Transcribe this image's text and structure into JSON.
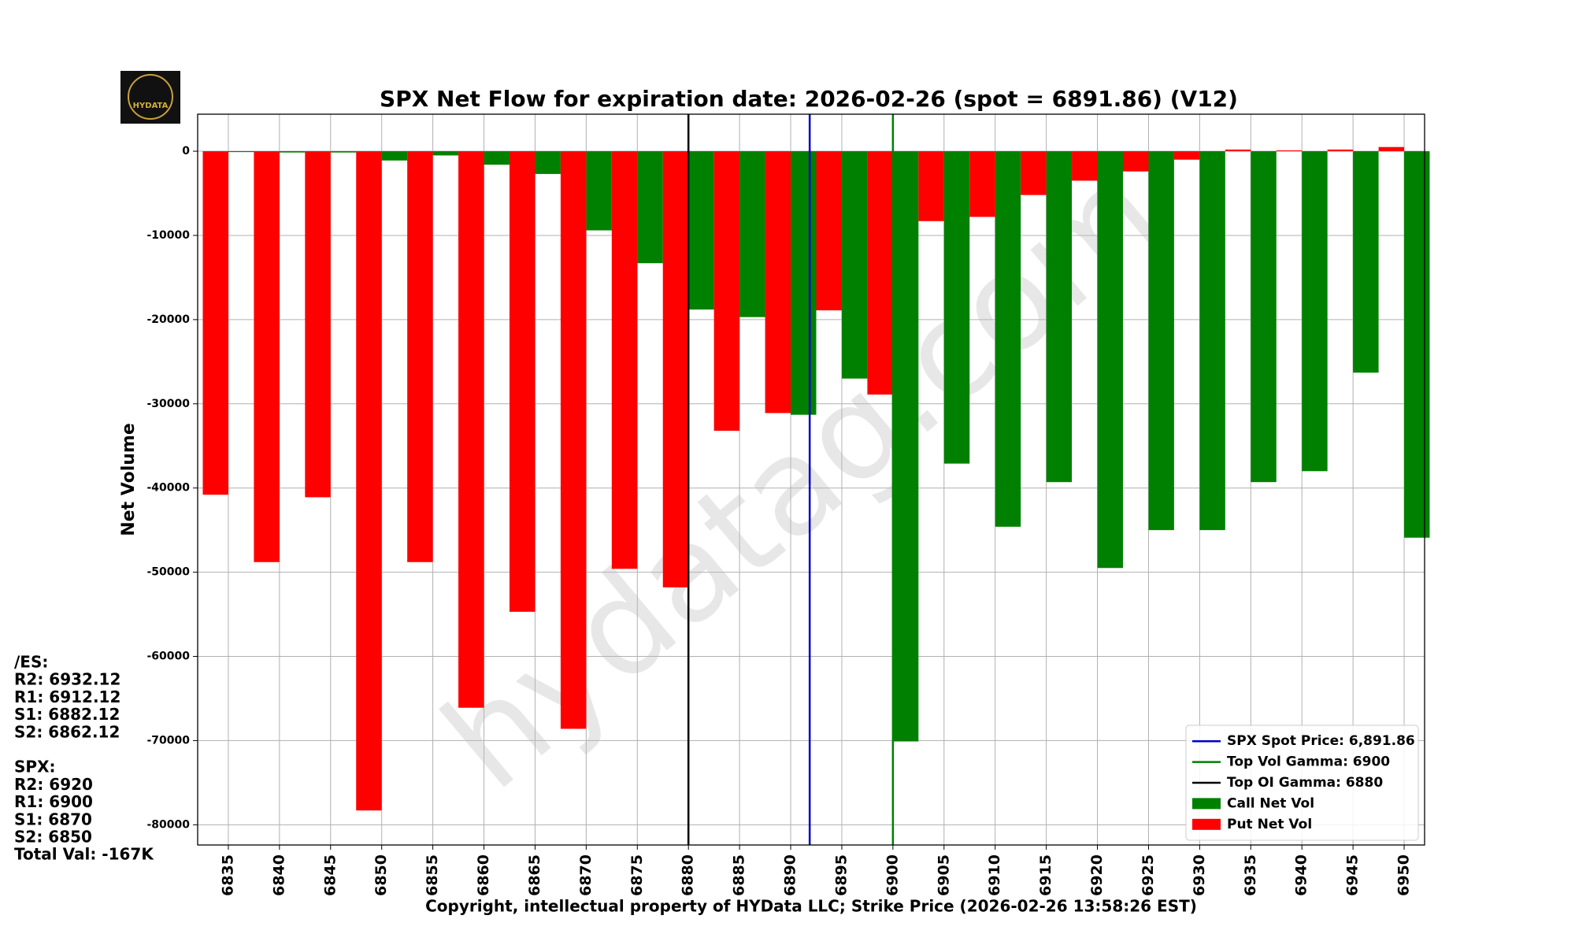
{
  "chart_data": {
    "type": "bar",
    "title": "SPX Net Flow for expiration date: 2026-02-26 (spot = 6891.86) (V12)",
    "x_label": "Copyright, intellectual property of HYData LLC; Strike Price (2026-02-26 13:58:26 EST)",
    "y_label": "Net Volume",
    "x": [
      6835,
      6840,
      6845,
      6850,
      6855,
      6860,
      6865,
      6870,
      6875,
      6880,
      6885,
      6890,
      6895,
      6900,
      6905,
      6910,
      6915,
      6920,
      6925,
      6930,
      6935,
      6940,
      6945,
      6950
    ],
    "xlim": [
      6832,
      6952
    ],
    "ylim": [
      -82400,
      4400
    ],
    "yticks": [
      0,
      -10000,
      -20000,
      -30000,
      -40000,
      -50000,
      -60000,
      -70000,
      -80000
    ],
    "grid": true,
    "series": [
      {
        "name": "Call Net Vol",
        "color": "#008000",
        "side": "right",
        "values": [
          -100,
          -150,
          -150,
          -1100,
          -500,
          -1600,
          -2700,
          -9400,
          -13300,
          -18800,
          -19700,
          -31300,
          -27000,
          -70100,
          -37100,
          -44600,
          -39300,
          -49500,
          -45000,
          -45000,
          -39300,
          -38000,
          -26300,
          -45900
        ]
      },
      {
        "name": "Put Net Vol",
        "color": "#ff0000",
        "side": "left",
        "values": [
          -40800,
          -48800,
          -41100,
          -78300,
          -48800,
          -66100,
          -54700,
          -68600,
          -49600,
          -51800,
          -33200,
          -31100,
          -18900,
          -28900,
          -8300,
          -7800,
          -5200,
          -3500,
          -2400,
          -1000,
          200,
          100,
          200,
          500
        ]
      }
    ],
    "reference_lines": [
      {
        "name": "SPX Spot Price: 6,891.86",
        "value": 6891.86,
        "color": "#0000cc"
      },
      {
        "name": "Top Vol Gamma: 6900",
        "value": 6900,
        "color": "#008000"
      },
      {
        "name": "Top OI Gamma: 6880",
        "value": 6880,
        "color": "#000000"
      }
    ],
    "legend_position": "lower right",
    "watermark": "hydatag.com",
    "logo_text": "HYDATA",
    "side_notes": [
      "/ES:",
      "R2: 6932.12",
      "R1: 6912.12",
      "S1: 6882.12",
      "S2: 6862.12",
      "",
      "SPX:",
      "R2: 6920",
      "R1: 6900",
      "S1: 6870",
      "S2: 6850",
      "Total Val: -167K"
    ]
  }
}
